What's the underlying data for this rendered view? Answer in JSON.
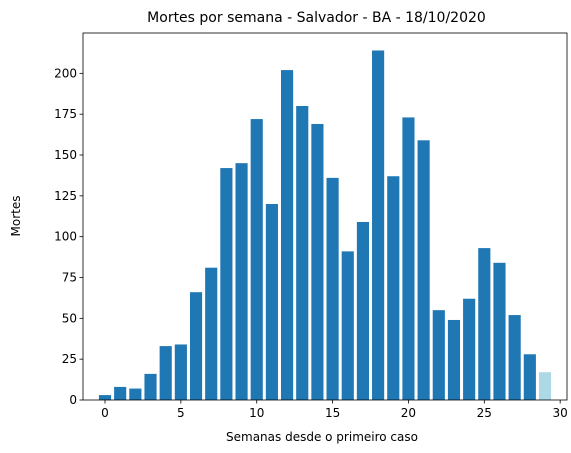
{
  "chart_data": {
    "type": "bar",
    "title": "Mortes por semana - Salvador - BA - 18/10/2020",
    "xlabel": "Semanas desde o primeiro caso",
    "ylabel": "Mortes",
    "x": [
      0,
      1,
      2,
      3,
      4,
      5,
      6,
      7,
      8,
      9,
      10,
      11,
      12,
      13,
      14,
      15,
      16,
      17,
      18,
      19,
      20,
      21,
      22,
      23,
      24,
      25,
      26,
      27,
      28,
      29
    ],
    "values": [
      3,
      8,
      7,
      16,
      33,
      34,
      66,
      81,
      142,
      145,
      172,
      120,
      202,
      180,
      169,
      136,
      91,
      109,
      214,
      137,
      173,
      159,
      55,
      49,
      62,
      93,
      84,
      52,
      28,
      17
    ],
    "xlim": [
      -1.45,
      30.45
    ],
    "ylim": [
      0,
      224.7
    ],
    "xticks": [
      0,
      5,
      10,
      15,
      20,
      25,
      30
    ],
    "yticks": [
      0,
      25,
      50,
      75,
      100,
      125,
      150,
      175,
      200
    ],
    "colors": {
      "bar": "#1f77b4",
      "last_bar": "#add8e6"
    },
    "grid": false,
    "legend": "none"
  }
}
